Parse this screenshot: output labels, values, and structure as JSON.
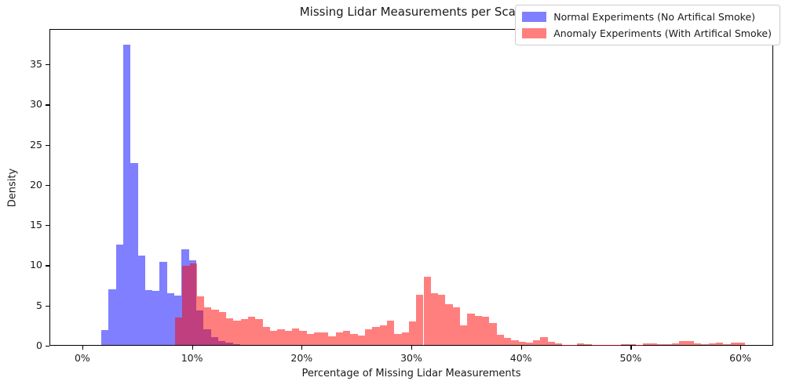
{
  "title": "Missing Lidar Measurements per Scan",
  "axes": {
    "xlabel": "Percentage of Missing Lidar Measurements",
    "ylabel": "Density",
    "x_tick_labels": [
      "0%",
      "10%",
      "20%",
      "30%",
      "40%",
      "50%",
      "60%"
    ],
    "x_tick_values": [
      0,
      10,
      20,
      30,
      40,
      50,
      60
    ],
    "y_tick_labels": [
      "0",
      "5",
      "10",
      "15",
      "20",
      "25",
      "30",
      "35"
    ],
    "y_tick_values": [
      0,
      5,
      10,
      15,
      20,
      25,
      30,
      35
    ],
    "xlim": [
      -3,
      63
    ],
    "ylim": [
      0,
      39.4
    ]
  },
  "legend": {
    "items": [
      {
        "label": "Normal Experiments (No Artifical Smoke)",
        "color": "#7f7fff"
      },
      {
        "label": "Anomaly Experiments (With Artifical Smoke)",
        "color": "#ff7f7f"
      }
    ]
  },
  "chart_data": {
    "type": "bar",
    "subtype": "overlapping-density-histograms",
    "title": "Missing Lidar Measurements per Scan",
    "xlabel": "Percentage of Missing Lidar Measurements",
    "ylabel": "Density",
    "xlim_pct": [
      -3,
      63
    ],
    "ylim": [
      0,
      39.4
    ],
    "grid": false,
    "legend_position": "upper right",
    "series": [
      {
        "name": "Normal Experiments (No Artifical Smoke)",
        "fill": "rgba(0,0,255,0.5)",
        "bin_start_pct": 1.66,
        "bin_width_pct": 0.668,
        "densities": [
          1.9,
          7.0,
          12.5,
          37.5,
          22.7,
          11.2,
          6.9,
          6.8,
          10.4,
          6.5,
          6.2,
          12.0,
          10.6,
          4.3,
          2.0,
          1.0,
          0.5,
          0.25,
          0.1
        ]
      },
      {
        "name": "Anomaly Experiments (With Artifical Smoke)",
        "fill": "rgba(255,0,0,0.5)",
        "bin_start_pct": 8.4,
        "bin_width_pct": 0.668,
        "densities": [
          3.4,
          9.9,
          10.2,
          6.1,
          4.7,
          4.4,
          4.1,
          3.3,
          3.0,
          3.2,
          3.5,
          3.2,
          2.3,
          1.8,
          2.0,
          1.8,
          2.05,
          1.8,
          1.4,
          1.6,
          1.6,
          1.05,
          1.55,
          1.8,
          1.4,
          1.2,
          2.0,
          2.25,
          2.45,
          3.0,
          1.4,
          1.6,
          2.9,
          6.3,
          8.5,
          6.5,
          6.3,
          5.1,
          4.7,
          2.5,
          3.9,
          3.65,
          3.5,
          2.7,
          1.3,
          0.9,
          0.55,
          0.4,
          0.3,
          0.55,
          0.95,
          0.4,
          0.15,
          0.05,
          0.05,
          0.2,
          0.1,
          0.05,
          0.02,
          0.02,
          0.05,
          0.1,
          0.12,
          0.05,
          0.23,
          0.23,
          0.1,
          0.1,
          0.15,
          0.45,
          0.45,
          0.15,
          0.1,
          0.15,
          0.3,
          0.1,
          0.25,
          0.25
        ]
      }
    ]
  }
}
